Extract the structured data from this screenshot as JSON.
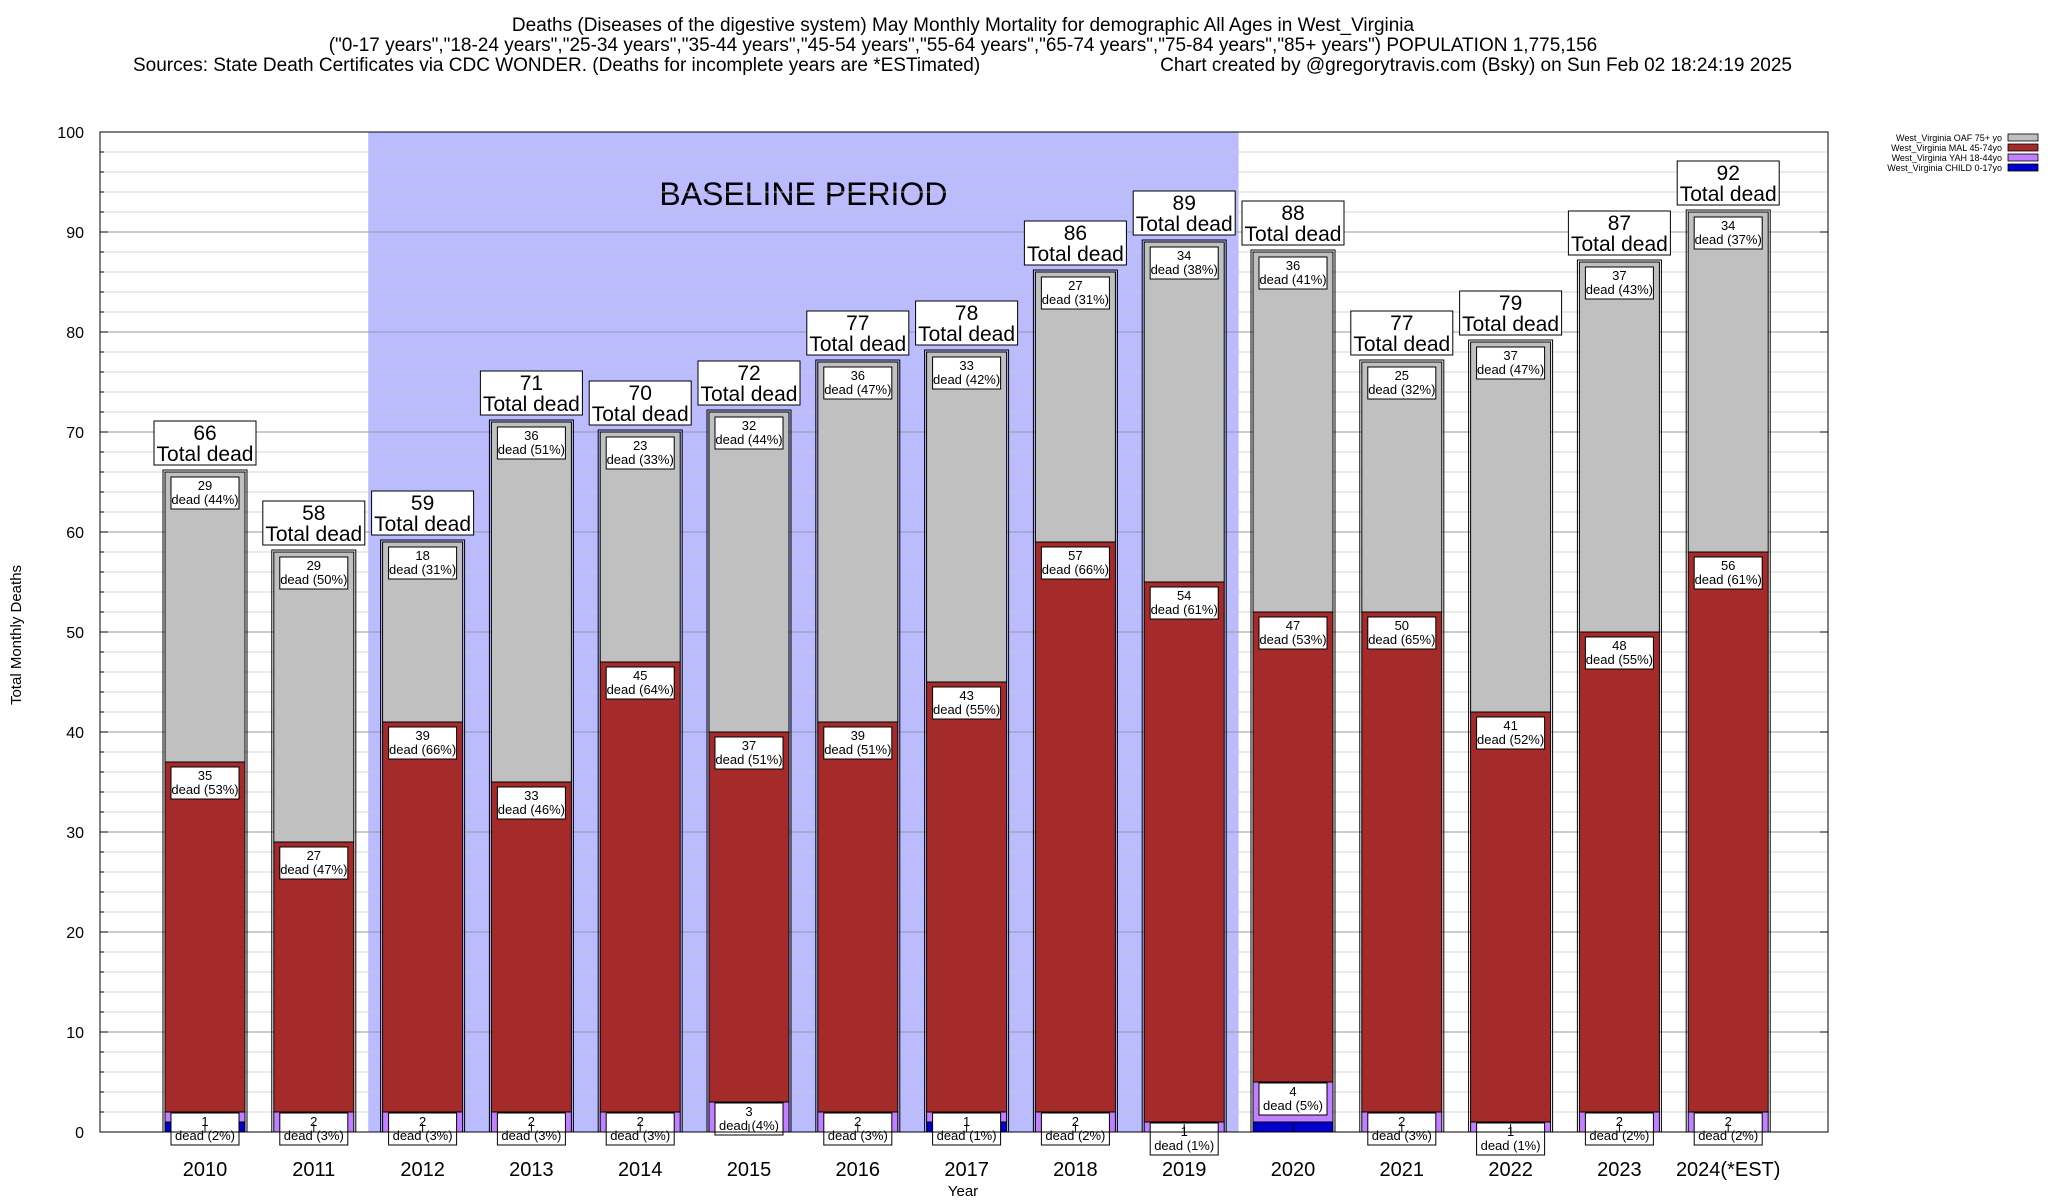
{
  "chart_data": {
    "type": "bar",
    "stacked": true,
    "title": "Deaths (Diseases of the digestive system) May Monthly Mortality for demographic All Ages in West_Virginia",
    "subtitle": "(\"0-17 years\",\"18-24 years\",\"25-34 years\",\"35-44 years\",\"45-54 years\",\"55-64 years\",\"65-74 years\",\"75-84 years\",\"85+ years\") POPULATION 1,775,156",
    "sources": "Sources: State Death Certificates via CDC WONDER. (Deaths for incomplete years are *ESTimated)",
    "credit": "Chart created by @gregorytravis.com (Bsky) on Sun Feb 02 18:24:19 2025",
    "xlabel": "Year",
    "ylabel": "Total Monthly Deaths",
    "ylim": [
      0,
      100
    ],
    "yticks": [
      0,
      10,
      20,
      30,
      40,
      50,
      60,
      70,
      80,
      90,
      100
    ],
    "baseline": {
      "label": "BASELINE PERIOD",
      "start_year": "2012",
      "end_year": "2019"
    },
    "categories": [
      "2010",
      "2011",
      "2012",
      "2013",
      "2014",
      "2015",
      "2016",
      "2017",
      "2018",
      "2019",
      "2020",
      "2021",
      "2022",
      "2023",
      "2024(*EST)"
    ],
    "totals": [
      66,
      58,
      59,
      71,
      70,
      72,
      77,
      78,
      86,
      89,
      88,
      77,
      79,
      87,
      92
    ],
    "total_label": "Total dead",
    "series": [
      {
        "name": "West_Virginia CHILD 0-17yo",
        "color": "#0000cc",
        "values": [
          1,
          0,
          0,
          0,
          0,
          0,
          0,
          1,
          0,
          0,
          1,
          0,
          0,
          0,
          0
        ]
      },
      {
        "name": "West_Virginia YAH 18-44yo",
        "color": "#c080ff",
        "values": [
          1,
          2,
          2,
          2,
          2,
          3,
          2,
          1,
          2,
          1,
          4,
          2,
          1,
          2,
          2
        ]
      },
      {
        "name": "West_Virginia MAL 45-74yo",
        "color": "#a52a2a",
        "values": [
          35,
          27,
          39,
          33,
          45,
          37,
          39,
          43,
          57,
          54,
          47,
          50,
          41,
          48,
          56
        ]
      },
      {
        "name": "West_Virginia OAF 75+ yo",
        "color": "#c0c0c0",
        "values": [
          29,
          29,
          18,
          36,
          23,
          32,
          36,
          33,
          27,
          34,
          36,
          25,
          37,
          37,
          34
        ]
      }
    ],
    "segment_labels": {
      "yah": [
        "1\ndead (2%)",
        "2\ndead (3%)",
        "2\ndead (3%)",
        "2\ndead (3%)",
        "2\ndead (3%)",
        "3\ndead (4%)",
        "2\ndead (3%)",
        "1\ndead (1%)",
        "2\ndead (2%)",
        "1\ndead (1%)",
        "4\ndead (5%)",
        "2\ndead (3%)",
        "1\ndead (1%)",
        "2\ndead (2%)",
        "2\ndead (2%)"
      ],
      "mal": [
        "35\ndead (53%)",
        "27\ndead (47%)",
        "39\ndead (66%)",
        "33\ndead (46%)",
        "45\ndead (64%)",
        "37\ndead (51%)",
        "39\ndead (51%)",
        "43\ndead (55%)",
        "57\ndead (66%)",
        "54\ndead (61%)",
        "47\ndead (53%)",
        "50\ndead (65%)",
        "41\ndead (52%)",
        "48\ndead (55%)",
        "56\ndead (61%)"
      ],
      "oaf": [
        "29\ndead (44%)",
        "29\ndead (50%)",
        "18\ndead (31%)",
        "36\ndead (51%)",
        "23\ndead (33%)",
        "32\ndead (44%)",
        "36\ndead (47%)",
        "33\ndead (42%)",
        "27\ndead (31%)",
        "34\ndead (38%)",
        "36\ndead (41%)",
        "25\ndead (32%)",
        "37\ndead (47%)",
        "37\ndead (43%)",
        "34\ndead (37%)"
      ]
    },
    "legend": [
      {
        "label": "West_Virginia OAF 75+ yo",
        "color": "#c0c0c0"
      },
      {
        "label": "West_Virginia MAL 45-74yo",
        "color": "#a52a2a"
      },
      {
        "label": "West_Virginia YAH 18-44yo",
        "color": "#c080ff"
      },
      {
        "label": "West_Virginia CHILD 0-17yo",
        "color": "#0000cc"
      }
    ],
    "baseline_color": "#bbbbff",
    "grid": true
  }
}
